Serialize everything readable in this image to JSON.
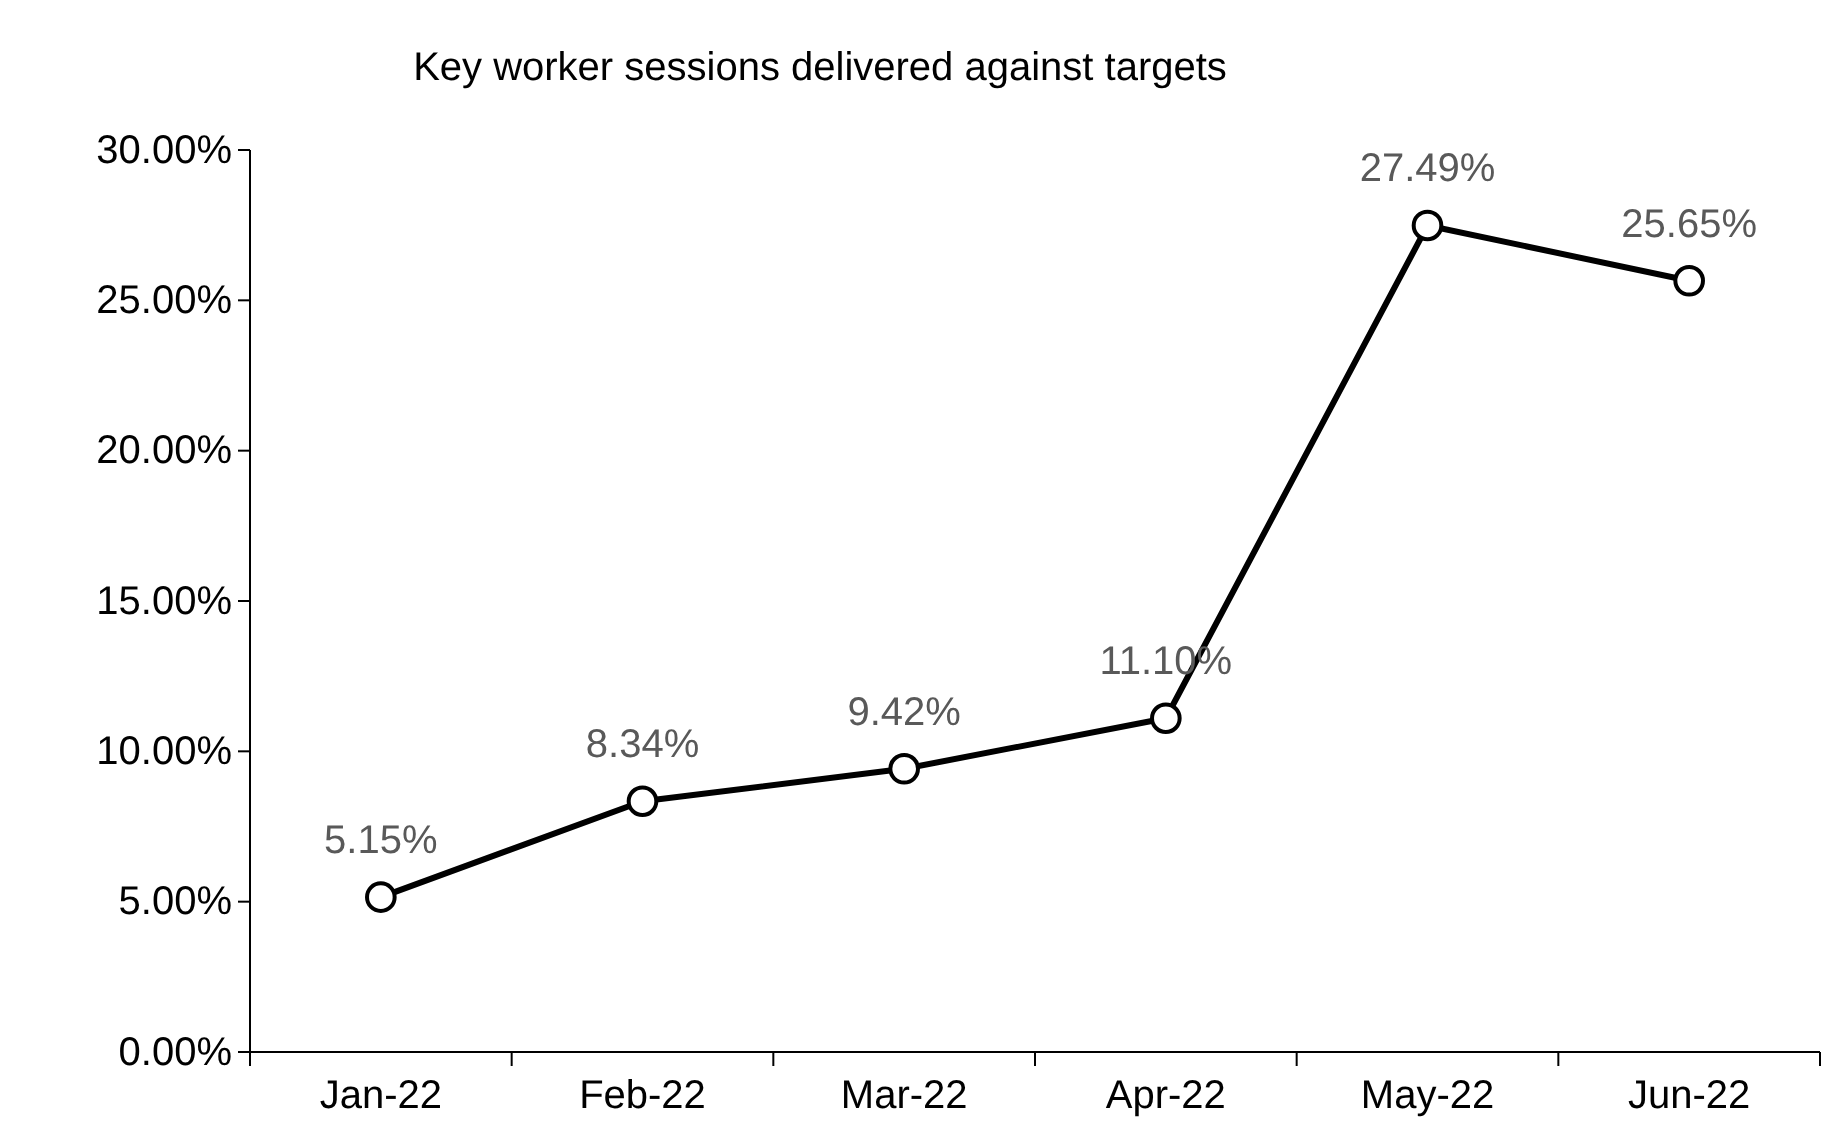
{
  "chart_data": {
    "type": "line",
    "title": "Key worker sessions delivered against targets",
    "categories": [
      "Jan-22",
      "Feb-22",
      "Mar-22",
      "Apr-22",
      "May-22",
      "Jun-22"
    ],
    "series": [
      {
        "color": "#000000",
        "values": [
          5.15,
          8.34,
          9.42,
          11.1,
          27.49,
          25.65
        ],
        "value_labels": [
          "5.15%",
          "8.34%",
          "9.42%",
          "11.10%",
          "27.49%",
          "25.65%"
        ]
      }
    ],
    "ylim": [
      0,
      30
    ],
    "yticks": [
      {
        "value": 0,
        "label": "0.00%"
      },
      {
        "value": 5,
        "label": "5.00%"
      },
      {
        "value": 10,
        "label": "10.00%"
      },
      {
        "value": 15,
        "label": "15.00%"
      },
      {
        "value": 20,
        "label": "20.00%"
      },
      {
        "value": 25,
        "label": "25.00%"
      },
      {
        "value": 30,
        "label": "30.00%"
      }
    ],
    "marker": "circle",
    "line_style": "solid"
  }
}
